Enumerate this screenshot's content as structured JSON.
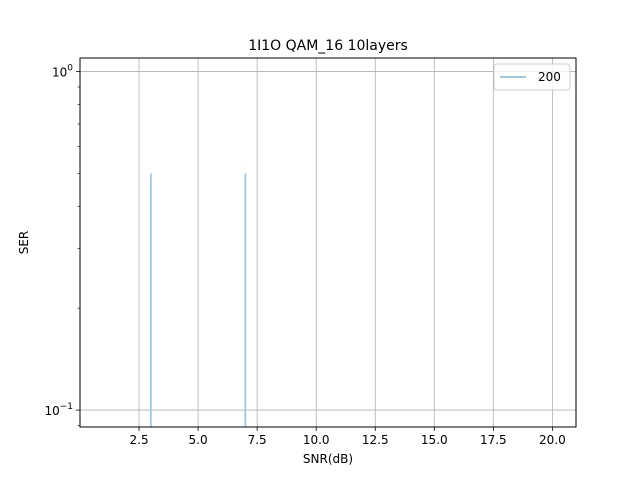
{
  "chart_data": {
    "type": "line",
    "title": "1I1O QAM_16 10layers",
    "xlabel": "SNR(dB)",
    "ylabel": "SER",
    "xlim": [
      0.0,
      21.0
    ],
    "ylim_log10": [
      -1.05,
      0.04
    ],
    "yscale": "log",
    "grid": true,
    "legend_position": "top-right",
    "x_ticks": [
      2.5,
      5.0,
      7.5,
      10.0,
      12.5,
      15.0,
      17.5,
      20.0
    ],
    "x_tick_labels": [
      "2.5",
      "5.0",
      "7.5",
      "10.0",
      "12.5",
      "15.0",
      "17.5",
      "20.0"
    ],
    "y_ticks": [
      {
        "value": 1.0,
        "base": "10",
        "exp": "0"
      },
      {
        "value": 0.1,
        "base": "10",
        "exp": "−1"
      }
    ],
    "series": [
      {
        "name": "200",
        "color": "#9ecae1",
        "segments": [
          [
            [
              3.0,
              0.5
            ],
            [
              3.0,
              0.05
            ]
          ],
          [
            [
              7.0,
              0.5
            ],
            [
              7.0,
              0.05
            ]
          ]
        ]
      }
    ]
  }
}
